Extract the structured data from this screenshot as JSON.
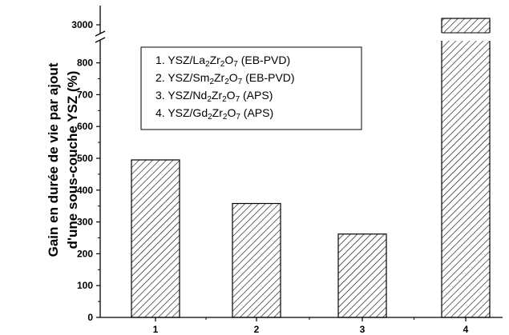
{
  "chart_data": {
    "type": "bar",
    "categories": [
      "1",
      "2",
      "3",
      "4"
    ],
    "values": [
      495,
      358,
      262,
      3200
    ],
    "ylabel_line1": "Gain en durée de vie par ajout",
    "ylabel_line2": "d'une sous-couche YSZ (%)",
    "ylim": [
      0,
      850
    ],
    "axis_break": {
      "lower_max": 850,
      "upper_tick": 3000
    },
    "yticks": [
      0,
      100,
      200,
      300,
      400,
      500,
      600,
      700,
      800
    ],
    "bar_fill": "hatched",
    "grid": false,
    "legend_position": "top-center",
    "legend": [
      {
        "prefix": "1. YSZ/La",
        "s1": "2",
        "mid1": "Zr",
        "s2": "2",
        "mid2": "O",
        "s3": "7",
        "suffix": " (EB-PVD)"
      },
      {
        "prefix": "2. YSZ/Sm",
        "s1": "2",
        "mid1": "Zr",
        "s2": "2",
        "mid2": "O",
        "s3": "7",
        "suffix": " (EB-PVD)"
      },
      {
        "prefix": "3. YSZ/Nd",
        "s1": "2",
        "mid1": "Zr",
        "s2": "2",
        "mid2": "O",
        "s3": "7",
        "suffix": " (APS)"
      },
      {
        "prefix": "4. YSZ/Gd",
        "s1": "2",
        "mid1": "Zr",
        "s2": "2",
        "mid2": "O",
        "s3": "7",
        "suffix": " (APS)"
      }
    ]
  }
}
